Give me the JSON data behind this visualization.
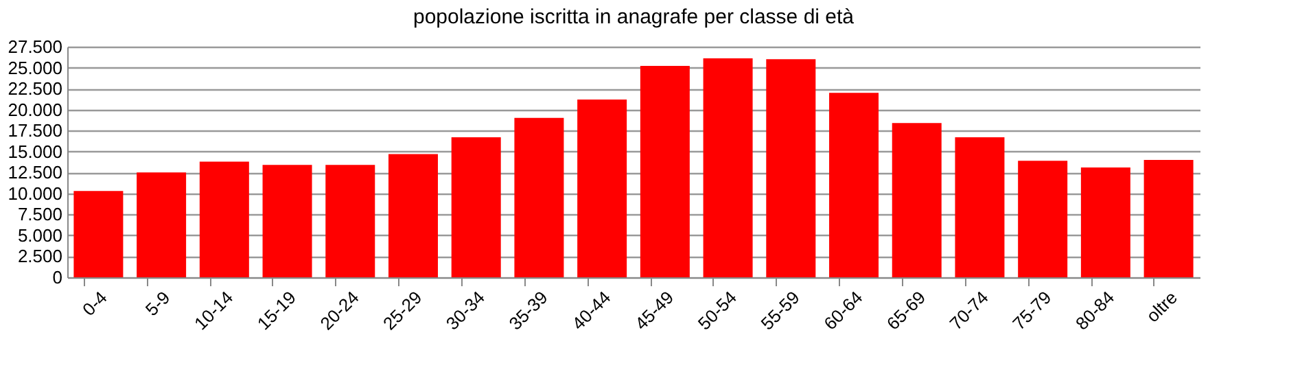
{
  "chart_data": {
    "type": "bar",
    "title": "popolazione iscritta in anagrafe per classe di età",
    "categories": [
      "0-4",
      "5-9",
      "10-14",
      "15-19",
      "20-24",
      "25-29",
      "30-34",
      "35-39",
      "40-44",
      "45-49",
      "50-54",
      "55-59",
      "60-64",
      "65-69",
      "70-74",
      "75-79",
      "80-84",
      "oltre"
    ],
    "values": [
      10300,
      12500,
      13800,
      13400,
      13400,
      14700,
      16700,
      19000,
      21200,
      25200,
      26100,
      26000,
      22000,
      18400,
      16700,
      13900,
      13100,
      14000
    ],
    "color": "#ff0000",
    "ylim": [
      0,
      27500
    ],
    "yticks": [
      0,
      {
        "value": 2500,
        "label": "2.500"
      },
      {
        "value": 5000,
        "label": "5.000"
      },
      {
        "value": 7500,
        "label": "7.500"
      },
      {
        "value": 10000,
        "label": "10.000"
      },
      {
        "value": 12500,
        "label": "12.500"
      },
      {
        "value": 15000,
        "label": "15.000"
      },
      {
        "value": 17500,
        "label": "17.500"
      },
      {
        "value": 20000,
        "label": "20.000"
      },
      {
        "value": 22500,
        "label": "22.500"
      },
      {
        "value": 25000,
        "label": "25.000"
      },
      {
        "value": 27500,
        "label": "27.500"
      }
    ],
    "grid": "y"
  }
}
